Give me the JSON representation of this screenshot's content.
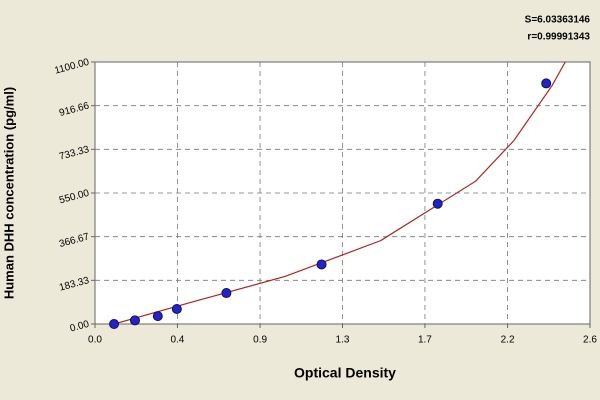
{
  "chart_data": {
    "type": "scatter",
    "x_label": "Optical Density",
    "y_label": "Human DHH concentration (pg/ml)",
    "annotations": [
      "S=6.03363146",
      "r=0.99991343"
    ],
    "series": [
      {
        "kind": "points",
        "color": "#2323c8",
        "x": [
          0.1,
          0.21,
          0.33,
          0.43,
          0.69,
          1.19,
          1.8,
          2.37
        ],
        "values": [
          0,
          15,
          33,
          63,
          130,
          250,
          505,
          1010
        ]
      },
      {
        "kind": "curve",
        "color": "#b22222",
        "x": [
          0.1,
          0.5,
          1.0,
          1.5,
          2.0,
          2.2,
          2.4,
          2.47
        ],
        "values": [
          0,
          90,
          200,
          350,
          600,
          770,
          1000,
          1100
        ]
      }
    ],
    "xlim": [
      0,
      2.6
    ],
    "xticks": [
      {
        "value": 0,
        "label": "0.0"
      },
      {
        "value": 0.433,
        "label": "0.4"
      },
      {
        "value": 0.867,
        "label": "0.9"
      },
      {
        "value": 1.3,
        "label": "1.3"
      },
      {
        "value": 1.733,
        "label": "1.7"
      },
      {
        "value": 2.167,
        "label": "2.2"
      },
      {
        "value": 2.6,
        "label": "2.6"
      }
    ],
    "ylim": [
      0,
      1100
    ],
    "yticks": [
      {
        "value": 0,
        "label": "0.00"
      },
      {
        "value": 183.33,
        "label": "183.33"
      },
      {
        "value": 366.67,
        "label": "366.67"
      },
      {
        "value": 550,
        "label": "550.00"
      },
      {
        "value": 733.33,
        "label": "733.33"
      },
      {
        "value": 916.66,
        "label": "916.66"
      },
      {
        "value": 1100,
        "label": "1100.00"
      }
    ],
    "grid": true
  }
}
